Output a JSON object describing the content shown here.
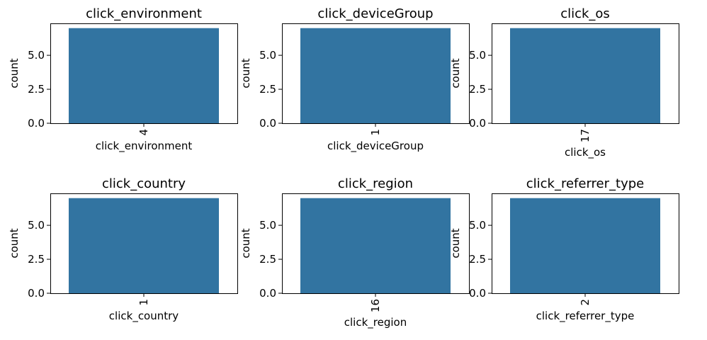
{
  "chart_data": [
    {
      "type": "bar",
      "title": "click_environment",
      "xlabel": "click_environment",
      "ylabel": "count",
      "categories": [
        "4"
      ],
      "values": [
        7
      ],
      "ylim": [
        0,
        7.35
      ],
      "yticks": [
        "0.0",
        "2.5",
        "5.0"
      ],
      "color": "#3274a1"
    },
    {
      "type": "bar",
      "title": "click_deviceGroup",
      "xlabel": "click_deviceGroup",
      "ylabel": "count",
      "categories": [
        "1"
      ],
      "values": [
        7
      ],
      "ylim": [
        0,
        7.35
      ],
      "yticks": [
        "0.0",
        "2.5",
        "5.0"
      ],
      "color": "#3274a1"
    },
    {
      "type": "bar",
      "title": "click_os",
      "xlabel": "click_os",
      "ylabel": "count",
      "categories": [
        "17"
      ],
      "values": [
        7
      ],
      "ylim": [
        0,
        7.35
      ],
      "yticks": [
        "0.0",
        "2.5",
        "5.0"
      ],
      "color": "#3274a1"
    },
    {
      "type": "bar",
      "title": "click_country",
      "xlabel": "click_country",
      "ylabel": "count",
      "categories": [
        "1"
      ],
      "values": [
        7
      ],
      "ylim": [
        0,
        7.35
      ],
      "yticks": [
        "0.0",
        "2.5",
        "5.0"
      ],
      "color": "#3274a1"
    },
    {
      "type": "bar",
      "title": "click_region",
      "xlabel": "click_region",
      "ylabel": "count",
      "categories": [
        "16"
      ],
      "values": [
        7
      ],
      "ylim": [
        0,
        7.35
      ],
      "yticks": [
        "0.0",
        "2.5",
        "5.0"
      ],
      "color": "#3274a1"
    },
    {
      "type": "bar",
      "title": "click_referrer_type",
      "xlabel": "click_referrer_type",
      "ylabel": "count",
      "categories": [
        "2"
      ],
      "values": [
        7
      ],
      "ylim": [
        0,
        7.35
      ],
      "yticks": [
        "0.0",
        "2.5",
        "5.0"
      ],
      "color": "#3274a1"
    }
  ]
}
